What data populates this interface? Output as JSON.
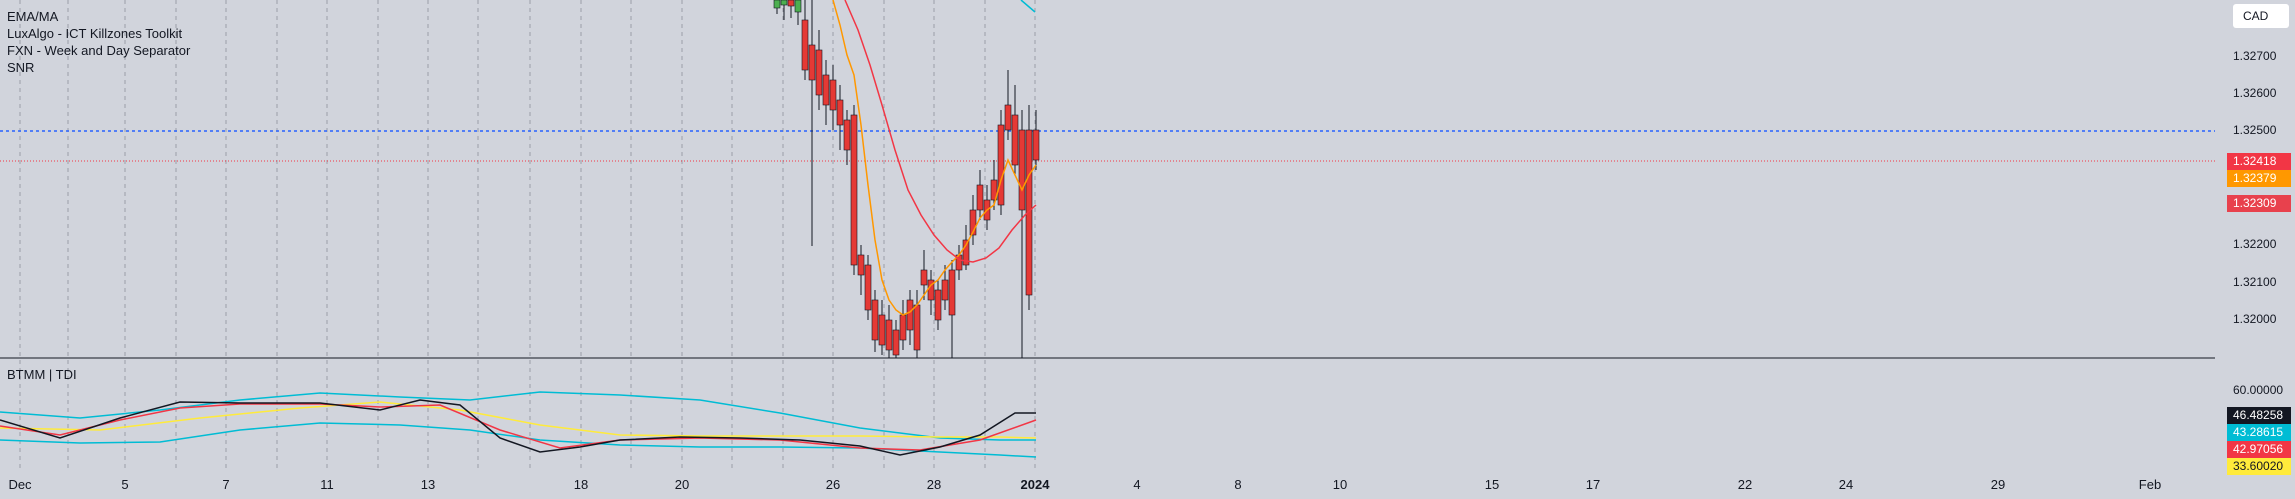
{
  "indicators": [
    "EMA/MA",
    "LuxAlgo - ICT Killzones Toolkit",
    "FXN - Week and Day Separator",
    "SNR"
  ],
  "sub_pane_title": "BTMM | TDI",
  "currency_button": "CAD",
  "price_axis": [
    "1.32700",
    "1.32600",
    "1.32500",
    "1.32200",
    "1.32100",
    "1.32000"
  ],
  "price_tags": [
    {
      "value": "1.32418",
      "color": "#f23645"
    },
    {
      "value": "1.32379",
      "color": "#ff9800"
    },
    {
      "value": "1.32309",
      "color": "#e8414d"
    }
  ],
  "sub_axis": [
    "60.00000"
  ],
  "sub_tags": [
    {
      "value": "46.48258",
      "color": "#131722"
    },
    {
      "value": "43.28615",
      "color": "#00bcd4"
    },
    {
      "value": "42.97056",
      "color": "#f23645"
    },
    {
      "value": "33.60020",
      "color": "#ffeb3b"
    }
  ],
  "time_axis": [
    "Dec",
    "5",
    "7",
    "11",
    "13",
    "18",
    "20",
    "26",
    "28",
    "2024",
    "4",
    "8",
    "10",
    "15",
    "17",
    "22",
    "24",
    "29",
    "Feb"
  ],
  "colors": {
    "bull": "#4caf50",
    "bear": "#e53935",
    "ema_fast": "#ff9800",
    "ema_slow": "#f23645",
    "blue_line": "#2962ff"
  }
}
